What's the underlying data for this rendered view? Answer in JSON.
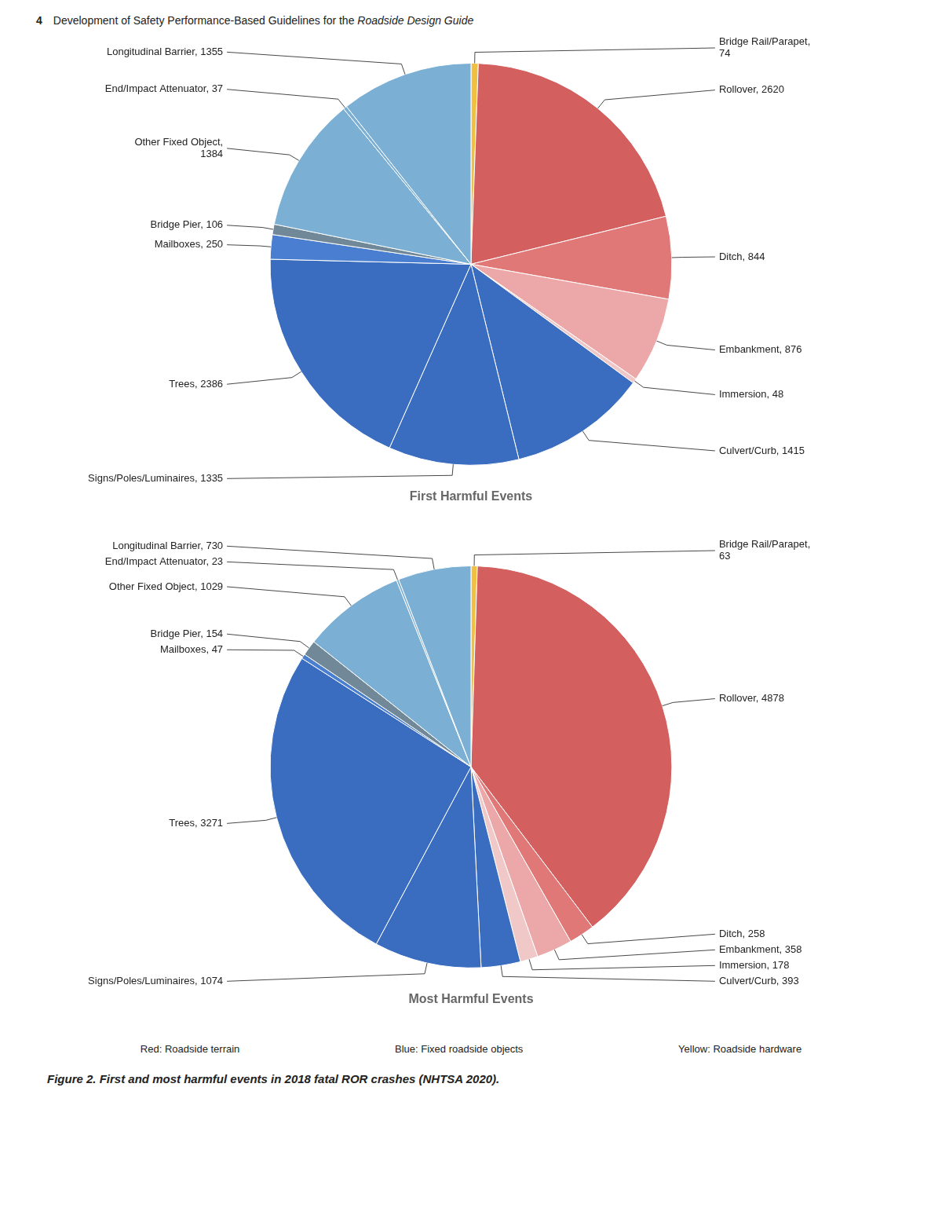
{
  "header": [
    "4",
    "Development of Safety Performance-Based Guidelines for the ",
    "Roadside Design Guide"
  ],
  "caption": "Figure 2.   First and most harmful events in 2018 fatal ROR crashes (NHTSA 2020).",
  "annotations": [
    "Red: Roadside terrain",
    "Blue: Fixed roadside objects",
    "Yellow: Roadside hardware"
  ],
  "chart_data": [
    {
      "type": "pie",
      "title": "First Harmful Events",
      "categories": [
        "Bridge Rail/Parapet",
        "Rollover",
        "Ditch",
        "Embankment",
        "Immersion",
        "Culvert/Curb",
        "Signs/Poles/Luminaires",
        "Trees",
        "Mailboxes",
        "Bridge Pier",
        "Other Fixed Object",
        "End/Impact Attenuator",
        "Longitudinal Barrier"
      ],
      "values": [
        74,
        2620,
        844,
        876,
        48,
        1415,
        1335,
        2386,
        250,
        106,
        1384,
        37,
        1355
      ],
      "value_labels": [
        "Bridge Rail/Parapet,\n74",
        "Rollover, 2620",
        "Ditch, 844",
        "Embankment, 876",
        "Immersion, 48",
        "Culvert/Curb, 1415",
        "Signs/Poles/Luminaires, 1335",
        "Trees, 2386",
        "Mailboxes, 250",
        "Bridge Pier, 106",
        "Other Fixed Object,\n1384",
        "End/Impact Attenuator, 37",
        "Longitudinal Barrier, 1355"
      ],
      "colors": [
        "#F0C040",
        "#D45F5F",
        "#E07878",
        "#ECA8A8",
        "#F0C8C8",
        "#3A6DBF",
        "#3A6DBF",
        "#3A6DBF",
        "#4A7ED0",
        "#708898",
        "#7BAFD4",
        "#7BAFD4",
        "#7BAFD4"
      ],
      "data_labels": true
    },
    {
      "type": "pie",
      "title": "Most Harmful Events",
      "categories": [
        "Bridge Rail/Parapet",
        "Rollover",
        "Ditch",
        "Embankment",
        "Immersion",
        "Culvert/Curb",
        "Signs/Poles/Luminaires",
        "Trees",
        "Mailboxes",
        "Bridge Pier",
        "Other Fixed Object",
        "End/Impact Attenuator",
        "Longitudinal Barrier"
      ],
      "values": [
        63,
        4878,
        258,
        358,
        178,
        393,
        1074,
        3271,
        47,
        154,
        1029,
        23,
        730
      ],
      "value_labels": [
        "Bridge Rail/Parapet,\n63",
        "Rollover, 4878",
        "Ditch, 258",
        "Embankment, 358",
        "Immersion, 178",
        "Culvert/Curb, 393",
        "Signs/Poles/Luminaires, 1074",
        "Trees, 3271",
        "Mailboxes, 47",
        "Bridge Pier, 154",
        "Other Fixed Object, 1029",
        "End/Impact Attenuator, 23",
        "Longitudinal Barrier, 730"
      ],
      "colors": [
        "#F0C040",
        "#D45F5F",
        "#E07878",
        "#ECA8A8",
        "#F0C8C8",
        "#3A6DBF",
        "#3A6DBF",
        "#3A6DBF",
        "#4A7ED0",
        "#708898",
        "#7BAFD4",
        "#7BAFD4",
        "#7BAFD4"
      ],
      "data_labels": true
    }
  ]
}
